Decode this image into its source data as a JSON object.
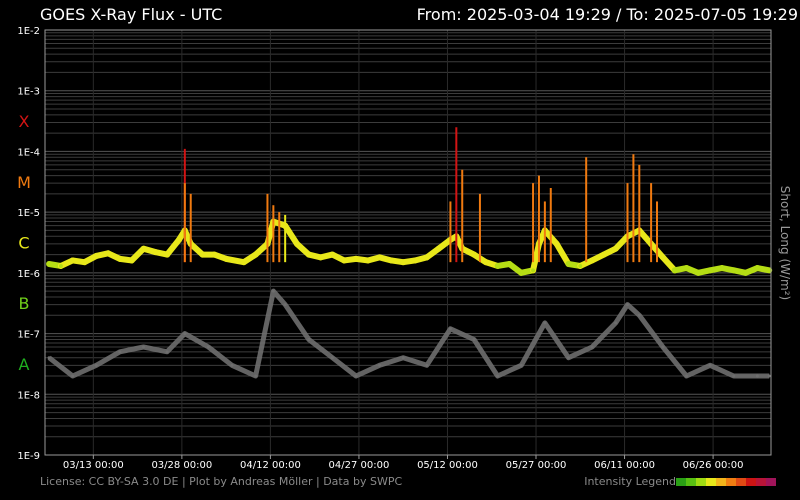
{
  "header": {
    "title": "GOES X-Ray Flux - UTC",
    "range": "From: 2025-03-04 19:29  /  To: 2025-07-05 19:29"
  },
  "footer": {
    "credits": "License: CC BY-SA 3.0 DE | Plot by Andreas Möller | Data by SWPC",
    "legend_label": "Intensity Legend"
  },
  "y_axis_label": "Short, Long (W/m²)",
  "colors": {
    "background": "#000000",
    "grid": "#3c3c3c",
    "short_channel": "#6e6e6e",
    "class_A": "#1fae1f",
    "class_B": "#6fcf1a",
    "class_C": "#e8e81a",
    "class_M": "#f07a10",
    "class_X": "#d21414"
  },
  "intensity_legend": [
    "#2aa015",
    "#58c012",
    "#9fdb12",
    "#e7e71a",
    "#f2b41a",
    "#f07d12",
    "#e04a14",
    "#cc1414",
    "#b81438",
    "#a0145a"
  ],
  "chart_data": {
    "type": "line",
    "title": "GOES X-Ray Flux - UTC",
    "ylabel": "Short, Long (W/m²)",
    "y_scale": "log",
    "ylim": [
      1e-09,
      0.01
    ],
    "xlim": [
      "2025-03-04 19:29",
      "2025-07-05 19:29"
    ],
    "grid": true,
    "y_ticks": [
      "1E-9",
      "1E-8",
      "1E-7",
      "1E-6",
      "1E-5",
      "1E-4",
      "1E-3",
      "1E-2"
    ],
    "x_ticks": [
      "03/13 00:00",
      "03/28 00:00",
      "04/12 00:00",
      "04/27 00:00",
      "05/12 00:00",
      "05/27 00:00",
      "06/11 00:00",
      "06/26 00:00"
    ],
    "flare_classes": [
      {
        "label": "A",
        "flux": 1e-08
      },
      {
        "label": "B",
        "flux": 1e-07
      },
      {
        "label": "C",
        "flux": 1e-06
      },
      {
        "label": "M",
        "flux": 1e-05
      },
      {
        "label": "X",
        "flux": 0.0001
      }
    ],
    "series": [
      {
        "name": "Long",
        "x": [
          "03-05",
          "03-07",
          "03-09",
          "03-11",
          "03-13",
          "03-15",
          "03-17",
          "03-19",
          "03-21",
          "03-23",
          "03-25",
          "03-27",
          "03-28",
          "03-29",
          "03-31",
          "04-02",
          "04-04",
          "04-07",
          "04-09",
          "04-11",
          "04-12",
          "04-14",
          "04-16",
          "04-18",
          "04-20",
          "04-22",
          "04-24",
          "04-26",
          "04-28",
          "04-30",
          "05-02",
          "05-04",
          "05-06",
          "05-08",
          "05-10",
          "05-12",
          "05-13",
          "05-14",
          "05-16",
          "05-18",
          "05-20",
          "05-22",
          "05-24",
          "05-26",
          "05-27",
          "05-28",
          "05-30",
          "06-01",
          "06-03",
          "06-05",
          "06-07",
          "06-09",
          "06-11",
          "06-13",
          "06-15",
          "06-17",
          "06-19",
          "06-21",
          "06-23",
          "06-25",
          "06-27",
          "06-29",
          "07-01",
          "07-03",
          "07-05"
        ],
        "y": [
          1.4e-06,
          1.3e-06,
          1.6e-06,
          1.5e-06,
          1.9e-06,
          2.1e-06,
          1.7e-06,
          1.6e-06,
          2.5e-06,
          2.2e-06,
          2e-06,
          3.5e-06,
          5e-06,
          3e-06,
          2e-06,
          2e-06,
          1.7e-06,
          1.5e-06,
          2e-06,
          3e-06,
          7e-06,
          6e-06,
          3e-06,
          2e-06,
          1.8e-06,
          2e-06,
          1.6e-06,
          1.7e-06,
          1.6e-06,
          1.8e-06,
          1.6e-06,
          1.5e-06,
          1.6e-06,
          1.8e-06,
          2.5e-06,
          3.5e-06,
          4e-06,
          2.5e-06,
          2e-06,
          1.5e-06,
          1.3e-06,
          1.4e-06,
          1e-06,
          1.1e-06,
          3e-06,
          5e-06,
          3e-06,
          1.4e-06,
          1.3e-06,
          1.6e-06,
          2e-06,
          2.5e-06,
          4e-06,
          5e-06,
          3e-06,
          1.8e-06,
          1.1e-06,
          1.2e-06,
          1e-06,
          1.1e-06,
          1.2e-06,
          1.1e-06,
          1e-06,
          1.2e-06,
          1.1e-06
        ]
      },
      {
        "name": "Short",
        "x": [
          "03-05",
          "03-09",
          "03-13",
          "03-17",
          "03-21",
          "03-25",
          "03-28",
          "04-01",
          "04-05",
          "04-09",
          "04-12",
          "04-14",
          "04-18",
          "04-22",
          "04-26",
          "04-30",
          "05-04",
          "05-08",
          "05-12",
          "05-16",
          "05-20",
          "05-24",
          "05-28",
          "06-01",
          "06-05",
          "06-09",
          "06-11",
          "06-13",
          "06-17",
          "06-21",
          "06-25",
          "06-29",
          "07-03",
          "07-05"
        ],
        "y": [
          4e-08,
          2e-08,
          3e-08,
          5e-08,
          6e-08,
          5e-08,
          1e-07,
          6e-08,
          3e-08,
          2e-08,
          5e-07,
          3e-07,
          8e-08,
          4e-08,
          2e-08,
          3e-08,
          4e-08,
          3e-08,
          1.2e-07,
          8e-08,
          2e-08,
          3e-08,
          1.5e-07,
          4e-08,
          6e-08,
          1.5e-07,
          3e-07,
          2e-07,
          6e-08,
          2e-08,
          3e-08,
          2e-08,
          2e-08,
          2e-08
        ]
      }
    ],
    "peaks": [
      {
        "x": "03-28",
        "y": 0.00011,
        "class": "X"
      },
      {
        "x": "03-28",
        "y": 3e-05,
        "class": "M"
      },
      {
        "x": "03-29",
        "y": 2e-05,
        "class": "M"
      },
      {
        "x": "04-11",
        "y": 2e-05,
        "class": "M"
      },
      {
        "x": "04-12",
        "y": 1.3e-05,
        "class": "M"
      },
      {
        "x": "04-13",
        "y": 1e-05,
        "class": "M"
      },
      {
        "x": "04-14",
        "y": 9e-06,
        "class": "C"
      },
      {
        "x": "05-12",
        "y": 1.5e-05,
        "class": "M"
      },
      {
        "x": "05-13",
        "y": 0.00025,
        "class": "X"
      },
      {
        "x": "05-14",
        "y": 5e-05,
        "class": "M"
      },
      {
        "x": "05-17",
        "y": 2e-05,
        "class": "M"
      },
      {
        "x": "05-26",
        "y": 3e-05,
        "class": "M"
      },
      {
        "x": "05-27",
        "y": 4e-05,
        "class": "M"
      },
      {
        "x": "05-28",
        "y": 1.5e-05,
        "class": "M"
      },
      {
        "x": "05-29",
        "y": 2.5e-05,
        "class": "M"
      },
      {
        "x": "06-04",
        "y": 8e-05,
        "class": "M"
      },
      {
        "x": "06-12",
        "y": 9e-05,
        "class": "M"
      },
      {
        "x": "06-13",
        "y": 6e-05,
        "class": "M"
      },
      {
        "x": "06-11",
        "y": 3e-05,
        "class": "M"
      },
      {
        "x": "06-15",
        "y": 3e-05,
        "class": "M"
      },
      {
        "x": "06-16",
        "y": 1.5e-05,
        "class": "M"
      }
    ]
  }
}
